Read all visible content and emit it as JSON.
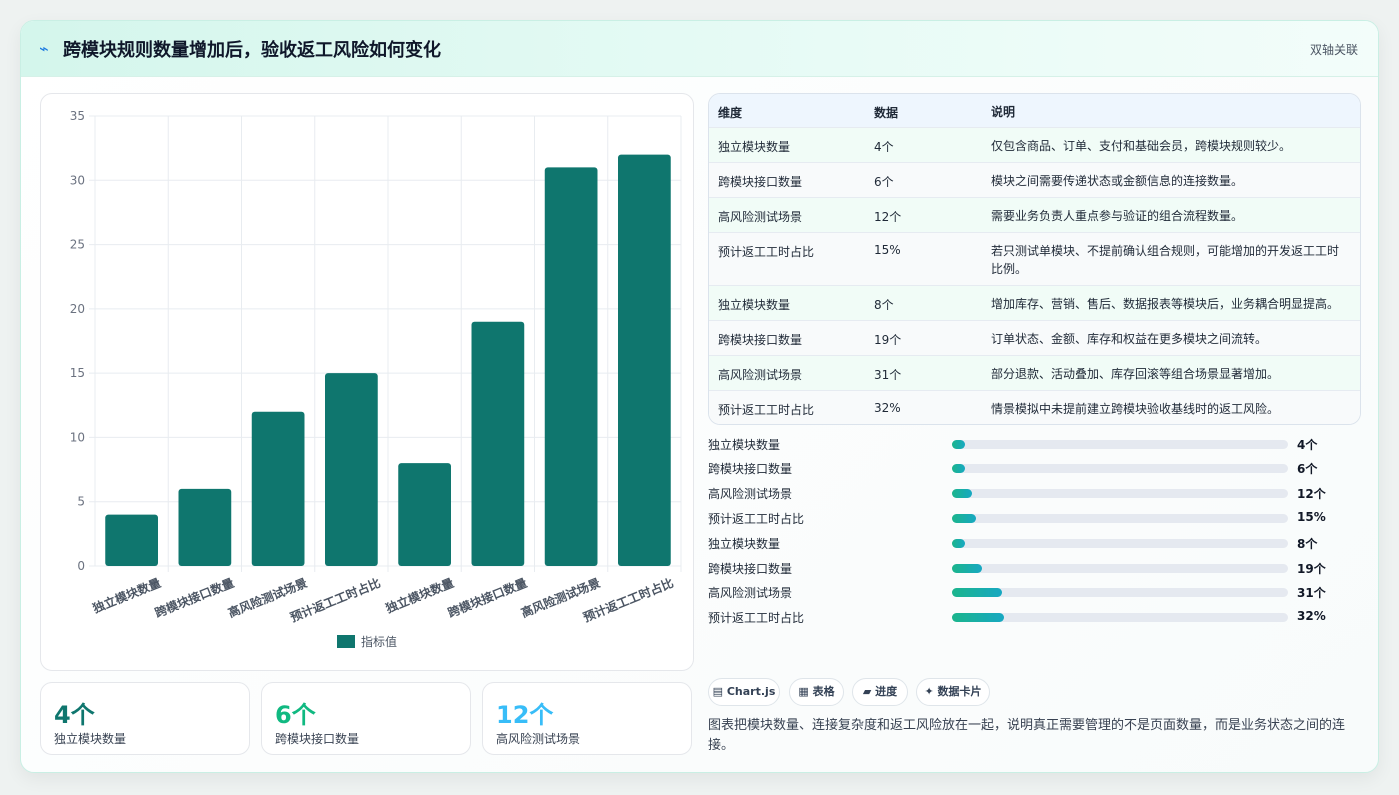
{
  "header": {
    "title": "跨模块规则数量增加后，验收返工风险如何变化",
    "right_label": "双轴关联",
    "bolt_icon": "bolt-icon"
  },
  "chart_data": {
    "type": "bar",
    "categories": [
      "独立模块数量",
      "跨模块接口数量",
      "高风险测试场景",
      "预计返工工时占比",
      "独立模块数量",
      "跨模块接口数量",
      "高风险测试场景",
      "预计返工工时占比"
    ],
    "series": [
      {
        "name": "指标值",
        "values": [
          4,
          6,
          12,
          15,
          8,
          19,
          31,
          32
        ],
        "color": "#0f766e"
      }
    ],
    "ylim": [
      0,
      35
    ],
    "yticks": [
      0,
      5,
      10,
      15,
      20,
      25,
      30,
      35
    ],
    "grid": true,
    "legend": "bottom"
  },
  "kpis": [
    {
      "value": "4个",
      "label": "独立模块数量",
      "color": "#0f766e"
    },
    {
      "value": "6个",
      "label": "跨模块接口数量",
      "color": "#10b981"
    },
    {
      "value": "12个",
      "label": "高风险测试场景",
      "color": "#38bdf8"
    }
  ],
  "table": {
    "headers": [
      "维度",
      "数据",
      "说明"
    ],
    "rows": [
      [
        "独立模块数量",
        "4个",
        "仅包含商品、订单、支付和基础会员，跨模块规则较少。"
      ],
      [
        "跨模块接口数量",
        "6个",
        "模块之间需要传递状态或金额信息的连接数量。"
      ],
      [
        "高风险测试场景",
        "12个",
        "需要业务负责人重点参与验证的组合流程数量。"
      ],
      [
        "预计返工工时占比",
        "15%",
        "若只测试单模块、不提前确认组合规则，可能增加的开发返工工时比例。"
      ],
      [
        "独立模块数量",
        "8个",
        "增加库存、营销、售后、数据报表等模块后，业务耦合明显提高。"
      ],
      [
        "跨模块接口数量",
        "19个",
        "订单状态、金额、库存和权益在更多模块之间流转。"
      ],
      [
        "高风险测试场景",
        "31个",
        "部分退款、活动叠加、库存回滚等组合场景显著增加。"
      ],
      [
        "预计返工工时占比",
        "32%",
        "情景模拟中未提前建立跨模块验收基线时的返工风险。"
      ]
    ]
  },
  "progress": [
    {
      "label": "独立模块数量",
      "value": "4个",
      "fraction": 0.04
    },
    {
      "label": "跨模块接口数量",
      "value": "6个",
      "fraction": 0.04
    },
    {
      "label": "高风险测试场景",
      "value": "12个",
      "fraction": 0.06
    },
    {
      "label": "预计返工工时占比",
      "value": "15%",
      "fraction": 0.07
    },
    {
      "label": "独立模块数量",
      "value": "8个",
      "fraction": 0.04
    },
    {
      "label": "跨模块接口数量",
      "value": "19个",
      "fraction": 0.09
    },
    {
      "label": "高风险测试场景",
      "value": "31个",
      "fraction": 0.15
    },
    {
      "label": "预计返工工时占比",
      "value": "32%",
      "fraction": 0.155
    }
  ],
  "chips": [
    {
      "icon": "▤",
      "label": "Chart.js"
    },
    {
      "icon": "▦",
      "label": "表格"
    },
    {
      "icon": "▰",
      "label": "进度"
    },
    {
      "icon": "✦",
      "label": "数据卡片"
    }
  ],
  "note": "图表把模块数量、连接复杂度和返工风险放在一起，说明真正需要管理的不是页面数量，而是业务状态之间的连接。"
}
